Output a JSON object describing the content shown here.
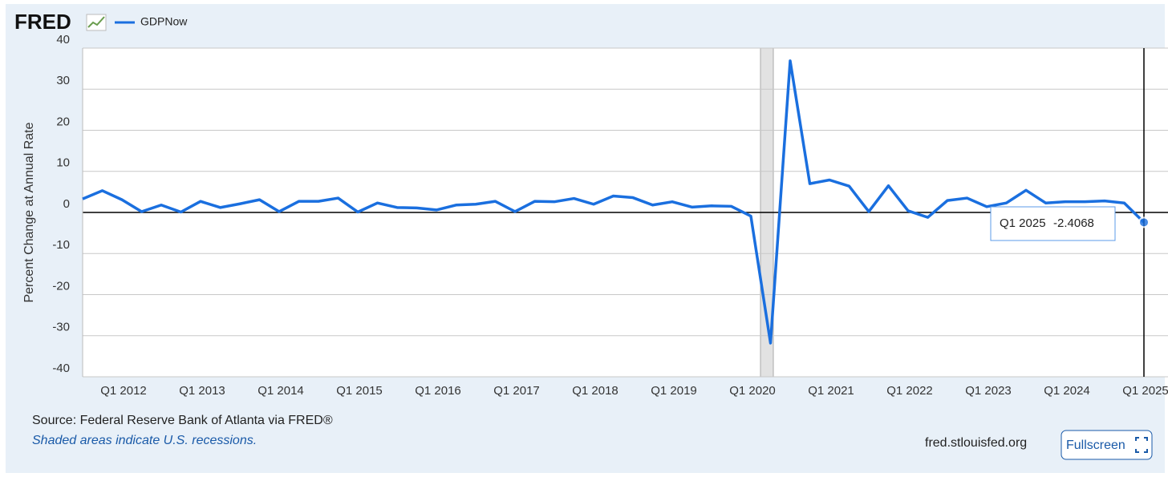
{
  "chart_data": {
    "type": "line",
    "logo": "FRED",
    "y_label": "Percent Change at Annual Rate",
    "source": "Source: Federal Reserve Bank of Atlanta via FRED®",
    "note": "Shaded areas indicate U.S. recessions.",
    "site": "fred.stlouisfed.org",
    "button": "Fullscreen",
    "categories": [
      null,
      null,
      "Q1 2012",
      null,
      null,
      null,
      "Q1 2013",
      null,
      null,
      null,
      "Q1 2014",
      null,
      null,
      null,
      "Q1 2015",
      null,
      null,
      null,
      "Q1 2016",
      null,
      null,
      null,
      "Q1 2017",
      null,
      null,
      null,
      "Q1 2018",
      null,
      null,
      null,
      "Q1 2019",
      null,
      null,
      null,
      "Q1 2020",
      null,
      null,
      null,
      "Q1 2021",
      null,
      null,
      null,
      "Q1 2022",
      null,
      null,
      null,
      "Q1 2023",
      null,
      null,
      null,
      "Q1 2024",
      null,
      null,
      null,
      "Q1 2025"
    ],
    "series": [
      {
        "name": "GDPNow",
        "color": "#1a6fdf",
        "values": [
          3.3,
          5.3,
          3.1,
          0.2,
          1.8,
          0.1,
          2.7,
          1.2,
          2.1,
          3.1,
          0.2,
          2.7,
          2.7,
          3.5,
          0.1,
          2.3,
          1.2,
          1.1,
          0.6,
          1.8,
          2.0,
          2.7,
          0.2,
          2.7,
          2.6,
          3.4,
          2.0,
          4.0,
          3.6,
          1.8,
          2.6,
          1.3,
          1.6,
          1.5,
          -0.9,
          -31.8,
          36.9,
          7.0,
          7.9,
          6.4,
          0.2,
          6.5,
          0.4,
          -1.2,
          2.9,
          3.5,
          1.4,
          2.3,
          5.4,
          2.3,
          2.6,
          2.6,
          2.8,
          2.3,
          -2.4068
        ]
      }
    ],
    "ylim": [
      -40,
      40
    ],
    "yticks": [
      -40,
      -30,
      -20,
      -10,
      0,
      10,
      20,
      30,
      40
    ],
    "grid": true
  }
}
